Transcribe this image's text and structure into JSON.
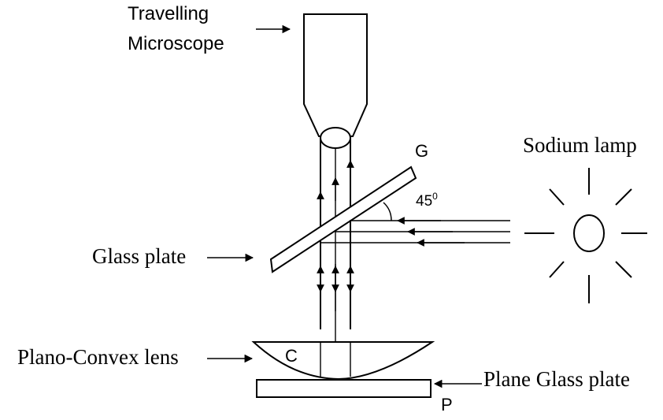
{
  "labels": {
    "microscope_line1": "Travelling",
    "microscope_line2": "Microscope",
    "g": "G",
    "angle": "45",
    "angle_sup": "0",
    "sodium_lamp": "Sodium lamp",
    "glass_plate": "Glass plate",
    "plano_convex": "Plano-Convex lens",
    "c": "C",
    "plane_glass": "Plane Glass plate",
    "p": "P"
  }
}
